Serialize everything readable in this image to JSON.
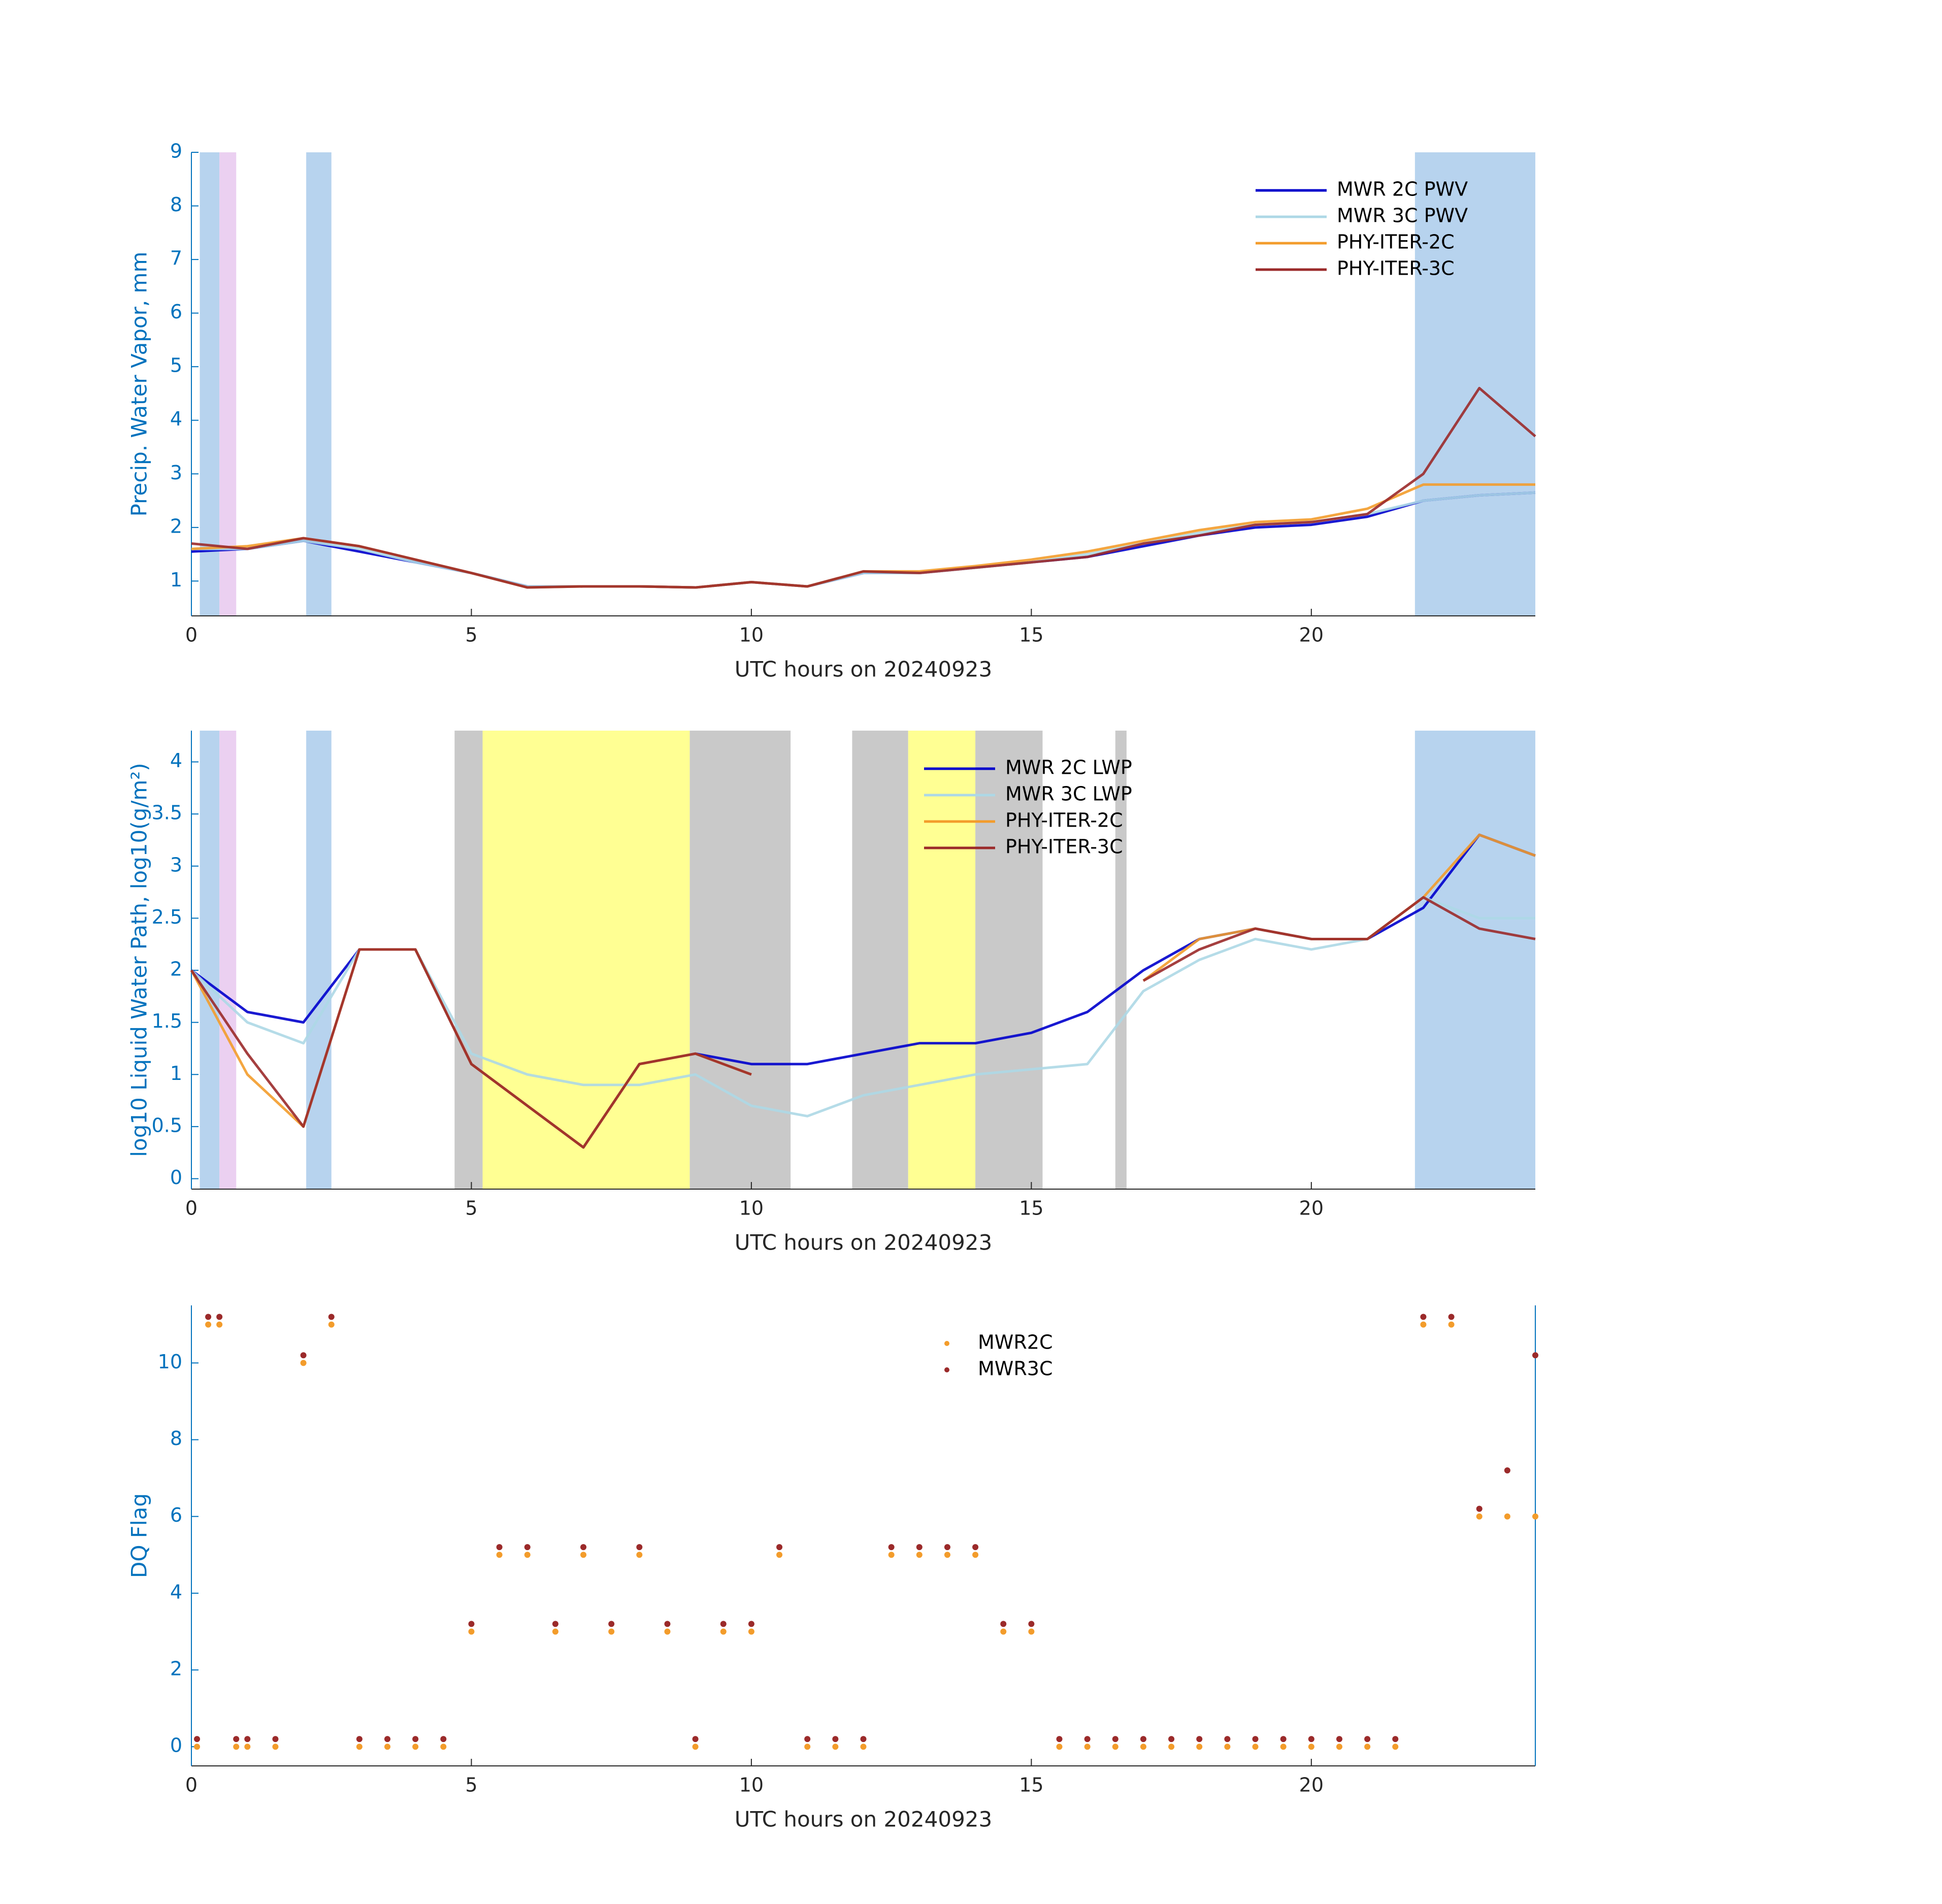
{
  "chart_data": [
    {
      "type": "line",
      "ylabel": "Precip. Water Vapor, mm",
      "xlabel": "UTC hours on 20240923",
      "xlim": [
        0,
        24
      ],
      "ylim": [
        0.35,
        9
      ],
      "xticks": [
        0,
        5,
        10,
        15,
        20
      ],
      "yticks": [
        1,
        2,
        3,
        4,
        5,
        6,
        7,
        8,
        9
      ],
      "legend": "upper right",
      "x": [
        0,
        1,
        2,
        3,
        4,
        5,
        6,
        7,
        8,
        9,
        10,
        11,
        12,
        13,
        14,
        15,
        16,
        17,
        18,
        19,
        20,
        21,
        22,
        23,
        24
      ],
      "shaded": [
        {
          "start": 0.15,
          "end": 0.5,
          "color": "#aacbeb"
        },
        {
          "start": 0.5,
          "end": 0.8,
          "color": "#e8c8ee"
        },
        {
          "start": 2.05,
          "end": 2.5,
          "color": "#aacbeb"
        },
        {
          "start": 21.85,
          "end": 24,
          "color": "#aacbeb"
        }
      ],
      "series": [
        {
          "name": "MWR 2C PWV",
          "color": "#0000cc",
          "values": [
            1.55,
            1.6,
            1.75,
            1.55,
            1.35,
            1.15,
            0.9,
            0.9,
            0.9,
            0.88,
            0.98,
            0.9,
            1.15,
            1.15,
            1.25,
            1.35,
            1.45,
            1.65,
            1.85,
            2.0,
            2.05,
            2.2,
            2.5,
            2.6,
            2.65
          ]
        },
        {
          "name": "MWR 3C PWV",
          "color": "#add8e6",
          "values": [
            1.6,
            1.6,
            1.75,
            1.6,
            1.35,
            1.15,
            0.9,
            0.9,
            0.9,
            0.88,
            0.98,
            0.9,
            1.15,
            1.15,
            1.25,
            1.35,
            1.5,
            1.7,
            1.9,
            2.05,
            2.1,
            2.25,
            2.5,
            2.6,
            2.65
          ]
        },
        {
          "name": "PHY-ITER-2C",
          "color": "#f39c2b",
          "values": [
            1.6,
            1.65,
            1.8,
            1.65,
            1.4,
            1.15,
            0.88,
            0.9,
            0.9,
            0.88,
            0.98,
            0.9,
            1.18,
            1.18,
            1.28,
            1.4,
            1.55,
            1.75,
            1.95,
            2.1,
            2.15,
            2.35,
            2.8,
            2.8,
            2.8
          ]
        },
        {
          "name": "PHY-ITER-3C",
          "color": "#9b2a2a",
          "values": [
            1.7,
            1.6,
            1.8,
            1.65,
            1.4,
            1.15,
            0.88,
            0.9,
            0.9,
            0.88,
            0.98,
            0.9,
            1.18,
            1.15,
            1.25,
            1.35,
            1.45,
            1.7,
            1.85,
            2.05,
            2.1,
            2.25,
            3.0,
            4.6,
            3.7
          ]
        }
      ]
    },
    {
      "type": "line",
      "ylabel": "log10 Liquid Water Path, log10(g/m²)",
      "xlabel": "UTC hours on 20240923",
      "xlim": [
        0,
        24
      ],
      "ylim": [
        -0.1,
        4.3
      ],
      "xticks": [
        0,
        5,
        10,
        15,
        20
      ],
      "yticks": [
        0,
        0.5,
        1,
        1.5,
        2,
        2.5,
        3,
        3.5,
        4
      ],
      "legend": "upper center",
      "x": [
        0,
        1,
        2,
        3,
        4,
        5,
        6,
        7,
        8,
        9,
        10,
        11,
        12,
        13,
        14,
        15,
        16,
        17,
        18,
        19,
        20,
        21,
        22,
        23,
        24
      ],
      "shaded": [
        {
          "start": 0.15,
          "end": 0.5,
          "color": "#aacbeb"
        },
        {
          "start": 0.5,
          "end": 0.8,
          "color": "#e8c8ee"
        },
        {
          "start": 2.05,
          "end": 2.5,
          "color": "#aacbeb"
        },
        {
          "start": 4.7,
          "end": 5.2,
          "color": "#c0c0c0"
        },
        {
          "start": 5.2,
          "end": 8.9,
          "color": "#ffff80"
        },
        {
          "start": 8.9,
          "end": 10.7,
          "color": "#c0c0c0"
        },
        {
          "start": 11.8,
          "end": 12.8,
          "color": "#c0c0c0"
        },
        {
          "start": 12.8,
          "end": 14.0,
          "color": "#ffff80"
        },
        {
          "start": 14.0,
          "end": 15.2,
          "color": "#c0c0c0"
        },
        {
          "start": 16.5,
          "end": 16.7,
          "color": "#c0c0c0"
        },
        {
          "start": 21.85,
          "end": 24,
          "color": "#aacbeb"
        }
      ],
      "series": [
        {
          "name": "MWR 2C LWP",
          "color": "#0000cc",
          "values": [
            2.0,
            1.6,
            1.5,
            2.2,
            2.2,
            1.1,
            0.7,
            0.3,
            1.1,
            1.2,
            1.1,
            1.1,
            1.2,
            1.3,
            1.3,
            1.4,
            1.6,
            2.0,
            2.3,
            2.4,
            2.3,
            2.3,
            2.6,
            3.3,
            3.1
          ]
        },
        {
          "name": "MWR 3C LWP",
          "color": "#add8e6",
          "values": [
            2.0,
            1.5,
            1.3,
            2.2,
            2.2,
            1.2,
            1.0,
            0.9,
            0.9,
            1.0,
            0.7,
            0.6,
            0.8,
            0.9,
            1.0,
            1.05,
            1.1,
            1.8,
            2.1,
            2.3,
            2.2,
            2.3,
            2.7,
            2.5,
            2.5
          ]
        },
        {
          "name": "PHY-ITER-2C",
          "color": "#f39c2b",
          "values": [
            2.0,
            1.0,
            0.5,
            2.2,
            2.2,
            1.1,
            0.7,
            0.3,
            1.1,
            1.2,
            1.0,
            null,
            null,
            null,
            null,
            null,
            null,
            1.9,
            2.3,
            2.4,
            2.3,
            2.3,
            2.7,
            3.3,
            3.1
          ]
        },
        {
          "name": "PHY-ITER-3C",
          "color": "#9b2a2a",
          "values": [
            2.0,
            1.2,
            0.5,
            2.2,
            2.2,
            1.1,
            0.7,
            0.3,
            1.1,
            1.2,
            1.0,
            null,
            null,
            null,
            null,
            null,
            null,
            1.9,
            2.2,
            2.4,
            2.3,
            2.3,
            2.7,
            2.4,
            2.3
          ]
        }
      ]
    },
    {
      "type": "scatter",
      "ylabel": "DQ Flag",
      "xlabel": "UTC hours on 20240923",
      "xlim": [
        0,
        24
      ],
      "ylim": [
        -0.5,
        11.5
      ],
      "xticks": [
        0,
        5,
        10,
        15,
        20
      ],
      "yticks": [
        0,
        2,
        4,
        6,
        8,
        10
      ],
      "legend": "upper center",
      "x": [
        0.1,
        0.3,
        0.5,
        0.8,
        1,
        1.5,
        2,
        2.5,
        3,
        3.5,
        4,
        4.5,
        5,
        5.5,
        6,
        6.5,
        7,
        7.5,
        8,
        8.5,
        9,
        9.5,
        10,
        10.5,
        11,
        11.5,
        12,
        12.5,
        13,
        13.5,
        14,
        14.5,
        15,
        15.5,
        16,
        16.5,
        17,
        17.5,
        18,
        18.5,
        19,
        19.5,
        20,
        20.5,
        21,
        21.5,
        22,
        22.5,
        23,
        23.5,
        24
      ],
      "series": [
        {
          "name": "MWR2C",
          "color": "#f39c2b",
          "values": [
            0,
            11,
            11,
            0,
            0,
            0,
            10,
            11,
            0,
            0,
            0,
            0,
            3,
            5,
            5,
            3,
            5,
            3,
            5,
            3,
            0,
            3,
            3,
            5,
            0,
            0,
            0,
            5,
            5,
            5,
            5,
            3,
            3,
            0,
            0,
            0,
            0,
            0,
            0,
            0,
            0,
            0,
            0,
            0,
            0,
            0,
            11,
            11,
            6,
            6,
            6
          ]
        },
        {
          "name": "MWR3C",
          "color": "#9b2a2a",
          "values": [
            0.2,
            11.2,
            11.2,
            0.2,
            0.2,
            0.2,
            10.2,
            11.2,
            0.2,
            0.2,
            0.2,
            0.2,
            3.2,
            5.2,
            5.2,
            3.2,
            5.2,
            3.2,
            5.2,
            3.2,
            0.2,
            3.2,
            3.2,
            5.2,
            0.2,
            0.2,
            0.2,
            5.2,
            5.2,
            5.2,
            5.2,
            3.2,
            3.2,
            0.2,
            0.2,
            0.2,
            0.2,
            0.2,
            0.2,
            0.2,
            0.2,
            0.2,
            0.2,
            0.2,
            0.2,
            0.2,
            11.2,
            11.2,
            6.2,
            7.2,
            10.2
          ]
        }
      ]
    }
  ]
}
